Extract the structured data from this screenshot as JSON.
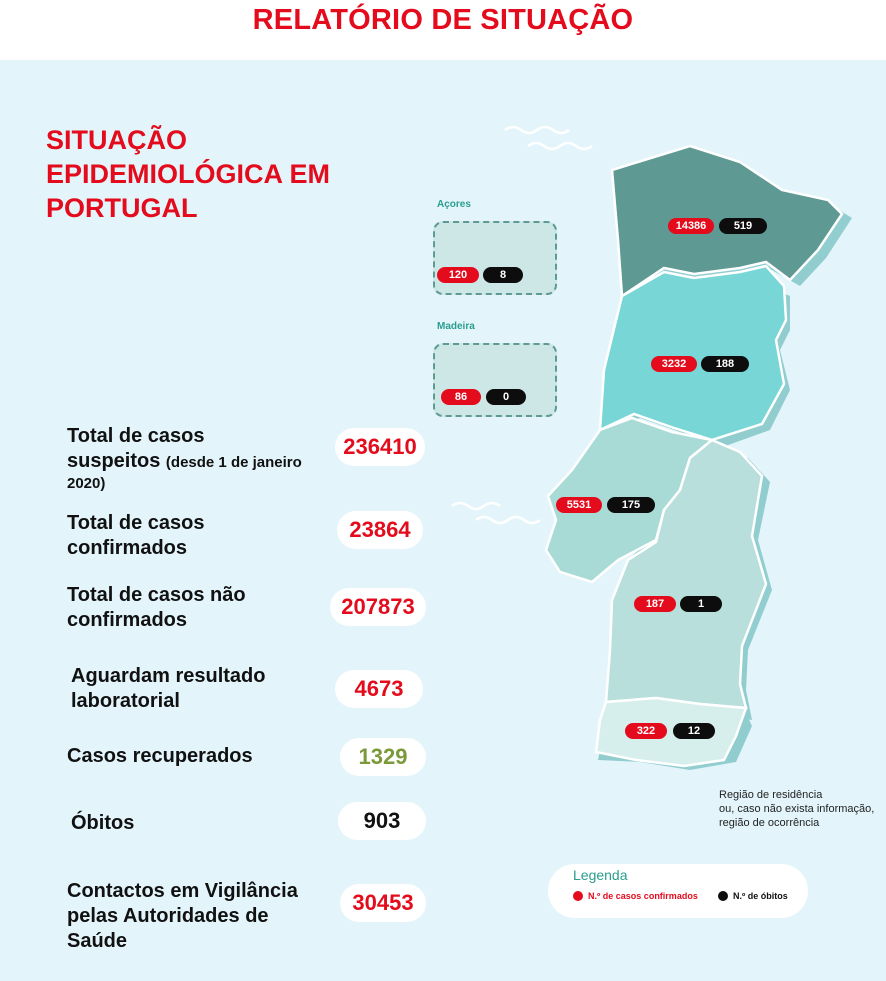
{
  "header": {
    "title": "RELATÓRIO DE SITUAÇÃO"
  },
  "section_title": [
    "SITUAÇÃO",
    "EPIDEMIOLÓGICA EM",
    "PORTUGAL"
  ],
  "stats": {
    "suspeitos": {
      "label_line1": "Total de casos",
      "label_line2": "suspeitos",
      "label_note_a": "(desde 1 de janeiro",
      "label_note_b": "2020)",
      "value": "236410"
    },
    "confirmados": {
      "label_line1": "Total de casos",
      "label_line2": "confirmados",
      "value": "23864"
    },
    "nao_confirmados": {
      "label_line1": "Total de casos não",
      "label_line2": "confirmados",
      "value": "207873"
    },
    "aguardam": {
      "label_line1": "Aguardam resultado",
      "label_line2": "laboratorial",
      "value": "4673"
    },
    "recuperados": {
      "label": "Casos recuperados",
      "value": "1329"
    },
    "obitos": {
      "label": "Óbitos",
      "value": "903"
    },
    "contactos": {
      "label_line1": "Contactos em Vigilância",
      "label_line2": "pelas Autoridades de",
      "label_line3": "Saúde",
      "value": "30453"
    }
  },
  "regions": {
    "acores": {
      "name": "Açores",
      "cases": "120",
      "deaths": "8"
    },
    "madeira": {
      "name": "Madeira",
      "cases": "86",
      "deaths": "0"
    },
    "norte": {
      "cases": "14386",
      "deaths": "519"
    },
    "centro": {
      "cases": "3232",
      "deaths": "188"
    },
    "lisboa": {
      "cases": "5531",
      "deaths": "175"
    },
    "alentejo": {
      "cases": "187",
      "deaths": "1"
    },
    "algarve": {
      "cases": "322",
      "deaths": "12"
    }
  },
  "note": [
    "Região de residência",
    "ou, caso não exista informação,",
    "região de ocorrência"
  ],
  "legend": {
    "title": "Legenda",
    "cases_label": "N.º de casos confirmados",
    "deaths_label": "N.º de óbitos"
  },
  "colors": {
    "accent": "#e30b1c",
    "norte": "#5e9993",
    "centro": "#78d6d6",
    "lisboa": "#a9dbd6",
    "alentejo": "#b8dfdb",
    "algarve": "#d7efec"
  }
}
